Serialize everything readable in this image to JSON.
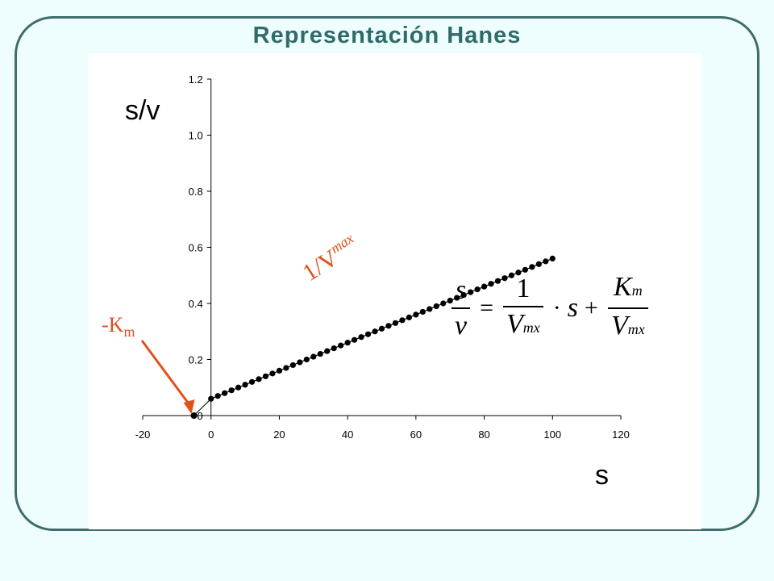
{
  "title": "Representación Hanes",
  "ylabel": "s/v",
  "xlabel": "s",
  "km_label": {
    "main": "-K",
    "sub": "m"
  },
  "slope_label": {
    "main": "1/V",
    "sub": "max"
  },
  "equation": {
    "lhs_num": "s",
    "lhs_den": "v",
    "equals": "=",
    "t1_num": "1",
    "t1_den_main": "V",
    "t1_den_sub": "mx",
    "dot": "·",
    "s": "s",
    "plus": "+",
    "t2_num_main": "K",
    "t2_num_sub": "m",
    "t2_den_main": "V",
    "t2_den_sub": "mx"
  },
  "colors": {
    "title": "#2f6b68",
    "frame": "#3e6d6b",
    "accent": "#e2501c",
    "background": "#eefefe"
  },
  "chart_data": {
    "type": "scatter",
    "xlim": [
      -20,
      120
    ],
    "ylim": [
      0,
      1.2
    ],
    "xticks": [
      -20,
      0,
      20,
      40,
      60,
      80,
      100,
      120
    ],
    "yticks": [
      0,
      0.2,
      0.4,
      0.6,
      0.8,
      1.0,
      1.2
    ],
    "ytick_labels": [
      "0",
      "0.2",
      "0.4",
      "0.6",
      "0.8",
      "1.0",
      "1.2"
    ],
    "grid": false,
    "intercept_point": {
      "x": -5,
      "y": 0
    },
    "series": [
      {
        "x": [
          0,
          2,
          4,
          6,
          8,
          10,
          12,
          14,
          16,
          18,
          20,
          22,
          24,
          26,
          28,
          30,
          32,
          34,
          36,
          38,
          40,
          42,
          44,
          46,
          48,
          50,
          52,
          54,
          56,
          58,
          60,
          62,
          64,
          66,
          68,
          70,
          72,
          74,
          76,
          78,
          80,
          82,
          84,
          86,
          88,
          90,
          92,
          94,
          96,
          98,
          100
        ],
        "y": [
          0.06,
          0.07,
          0.08,
          0.09,
          0.1,
          0.11,
          0.12,
          0.13,
          0.14,
          0.15,
          0.16,
          0.17,
          0.18,
          0.19,
          0.2,
          0.21,
          0.22,
          0.23,
          0.24,
          0.25,
          0.26,
          0.27,
          0.28,
          0.29,
          0.3,
          0.31,
          0.32,
          0.33,
          0.34,
          0.35,
          0.36,
          0.37,
          0.38,
          0.39,
          0.4,
          0.41,
          0.42,
          0.43,
          0.44,
          0.45,
          0.46,
          0.47,
          0.48,
          0.49,
          0.5,
          0.51,
          0.52,
          0.53,
          0.54,
          0.55,
          0.56
        ]
      }
    ]
  }
}
